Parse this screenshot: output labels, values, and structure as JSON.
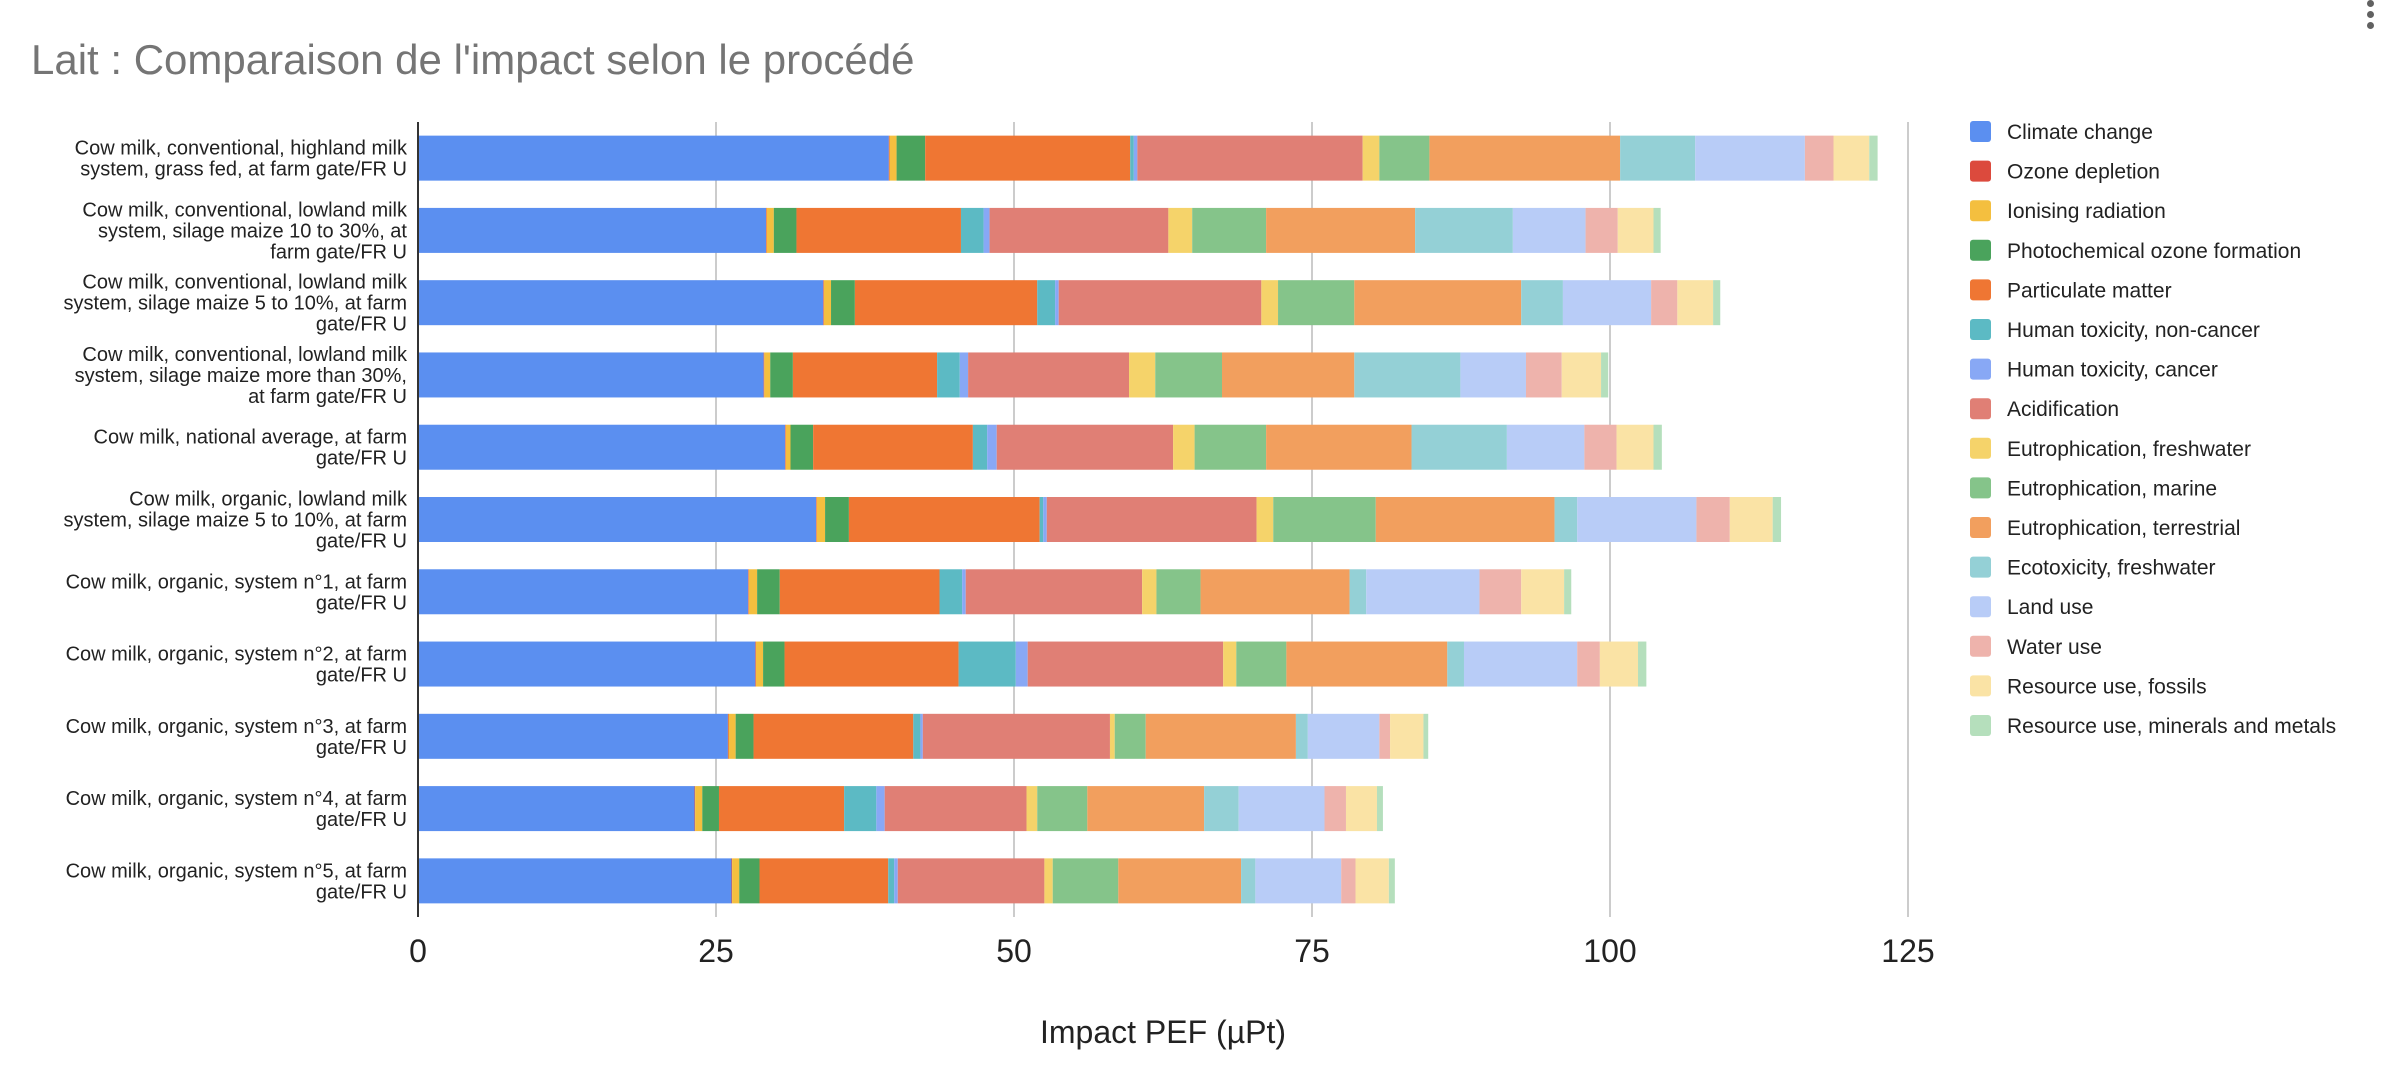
{
  "chart_data": {
    "type": "bar",
    "orientation": "horizontal",
    "stacked": true,
    "title": "Lait : Comparaison de l'impact selon le procédé",
    "xlabel": "Impact PEF (µPt)",
    "ylabel": "",
    "xlim": [
      0,
      125
    ],
    "xticks": [
      "0",
      "25",
      "50",
      "75",
      "100",
      "125"
    ],
    "grid": true,
    "legend_position": "right",
    "categories": [
      [
        "Cow milk, conventional, highland milk",
        "system, grass fed, at farm gate/FR U"
      ],
      [
        "Cow milk, conventional, lowland milk",
        "system, silage maize 10 to 30%, at",
        "farm gate/FR U"
      ],
      [
        "Cow milk, conventional, lowland milk",
        "system, silage maize 5 to 10%, at farm",
        "gate/FR U"
      ],
      [
        "Cow milk, conventional, lowland milk",
        "system, silage maize more than 30%,",
        "at farm gate/FR U"
      ],
      [
        "Cow milk, national average, at farm",
        "gate/FR U"
      ],
      [
        "Cow milk, organic, lowland milk",
        "system, silage maize 5 to 10%, at farm",
        "gate/FR U"
      ],
      [
        "Cow milk, organic, system n°1, at farm",
        "gate/FR U"
      ],
      [
        "Cow milk, organic, system n°2, at farm",
        "gate/FR U"
      ],
      [
        "Cow milk, organic, system n°3, at farm",
        "gate/FR U"
      ],
      [
        "Cow milk, organic, system n°4, at farm",
        "gate/FR U"
      ],
      [
        "Cow milk, organic, system n°5, at farm",
        "gate/FR U"
      ]
    ],
    "series": [
      {
        "name": "Climate change",
        "color": "#5b8ff0",
        "values": [
          39.5,
          29.2,
          34.0,
          29.0,
          30.8,
          33.4,
          27.7,
          28.3,
          26.0,
          23.2,
          26.3
        ]
      },
      {
        "name": "Ozone depletion",
        "color": "#dc4a3d",
        "values": [
          0.05,
          0.05,
          0.05,
          0.05,
          0.05,
          0.05,
          0.05,
          0.05,
          0.05,
          0.05,
          0.05
        ]
      },
      {
        "name": "Ionising radiation",
        "color": "#f4bf3f",
        "values": [
          0.6,
          0.6,
          0.6,
          0.5,
          0.4,
          0.7,
          0.7,
          0.6,
          0.6,
          0.6,
          0.6
        ]
      },
      {
        "name": "Photochemical ozone formation",
        "color": "#4aa35c",
        "values": [
          2.4,
          1.9,
          2.0,
          1.9,
          1.9,
          2.0,
          1.9,
          1.8,
          1.5,
          1.4,
          1.7
        ]
      },
      {
        "name": "Particulate matter",
        "color": "#ef7633",
        "values": [
          17.2,
          13.8,
          15.3,
          12.1,
          13.4,
          16.0,
          13.4,
          14.6,
          13.4,
          10.5,
          10.8
        ]
      },
      {
        "name": "Human toxicity, non-cancer",
        "color": "#5cbac4",
        "values": [
          0.3,
          1.9,
          1.5,
          1.9,
          1.2,
          0.3,
          1.9,
          4.8,
          0.6,
          2.7,
          0.5
        ]
      },
      {
        "name": "Human toxicity, cancer",
        "color": "#88a8f5",
        "values": [
          0.3,
          0.5,
          0.3,
          0.7,
          0.8,
          0.3,
          0.3,
          1.0,
          0.2,
          0.7,
          0.3
        ]
      },
      {
        "name": "Acidification",
        "color": "#e07f75",
        "values": [
          18.9,
          15.0,
          17.0,
          13.5,
          14.8,
          17.6,
          14.8,
          16.4,
          15.7,
          11.9,
          12.3
        ]
      },
      {
        "name": "Eutrophication, freshwater",
        "color": "#f5d36a",
        "values": [
          1.4,
          2.0,
          1.4,
          2.2,
          1.8,
          1.4,
          1.2,
          1.1,
          0.4,
          0.9,
          0.7
        ]
      },
      {
        "name": "Eutrophication, marine",
        "color": "#85c48a",
        "values": [
          4.2,
          6.2,
          6.4,
          5.6,
          6.0,
          8.6,
          3.7,
          4.2,
          2.6,
          4.2,
          5.5
        ]
      },
      {
        "name": "Eutrophication, terrestrial",
        "color": "#f29f5e",
        "values": [
          16.0,
          12.5,
          14.0,
          11.1,
          12.2,
          15.0,
          12.5,
          13.5,
          12.6,
          9.8,
          10.3
        ]
      },
      {
        "name": "Ecotoxicity, freshwater",
        "color": "#94d0d6",
        "values": [
          6.3,
          8.2,
          3.5,
          8.9,
          8.0,
          1.9,
          1.4,
          1.4,
          1.0,
          2.9,
          1.2
        ]
      },
      {
        "name": "Land use",
        "color": "#b8ccf7",
        "values": [
          9.2,
          6.1,
          7.4,
          5.5,
          6.5,
          10.0,
          9.5,
          9.5,
          6.0,
          7.2,
          7.2
        ]
      },
      {
        "name": "Water use",
        "color": "#eeb3ac",
        "values": [
          2.4,
          2.7,
          2.2,
          3.0,
          2.7,
          2.8,
          3.5,
          1.9,
          0.9,
          1.8,
          1.2
        ]
      },
      {
        "name": "Resource use, fossils",
        "color": "#fae3a5",
        "values": [
          3.0,
          3.0,
          3.0,
          3.3,
          3.1,
          3.6,
          3.6,
          3.2,
          2.8,
          2.6,
          2.8
        ]
      },
      {
        "name": "Resource use, minerals and metals",
        "color": "#b5dfbc",
        "values": [
          0.7,
          0.6,
          0.6,
          0.6,
          0.7,
          0.7,
          0.6,
          0.7,
          0.4,
          0.5,
          0.5
        ]
      }
    ]
  }
}
